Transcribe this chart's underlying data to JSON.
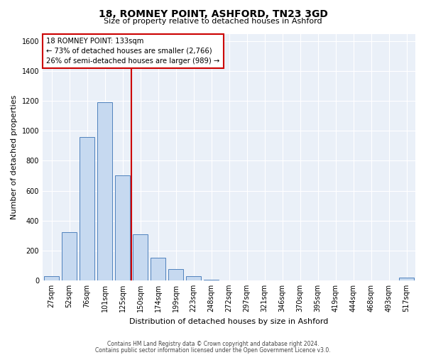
{
  "title_line1": "18, ROMNEY POINT, ASHFORD, TN23 3GD",
  "title_line2": "Size of property relative to detached houses in Ashford",
  "xlabel": "Distribution of detached houses by size in Ashford",
  "ylabel": "Number of detached properties",
  "bar_labels": [
    "27sqm",
    "52sqm",
    "76sqm",
    "101sqm",
    "125sqm",
    "150sqm",
    "174sqm",
    "199sqm",
    "223sqm",
    "248sqm",
    "272sqm",
    "297sqm",
    "321sqm",
    "346sqm",
    "370sqm",
    "395sqm",
    "419sqm",
    "444sqm",
    "468sqm",
    "493sqm",
    "517sqm"
  ],
  "bar_values": [
    28,
    320,
    960,
    1190,
    700,
    310,
    150,
    75,
    28,
    5,
    0,
    0,
    0,
    0,
    0,
    0,
    0,
    0,
    0,
    0,
    18
  ],
  "bar_color": "#c6d9f0",
  "bar_edge_color": "#4f81bd",
  "reference_line_x": 4.5,
  "reference_line_color": "#cc0000",
  "annotation_line1": "18 ROMNEY POINT: 133sqm",
  "annotation_line2": "← 73% of detached houses are smaller (2,766)",
  "annotation_line3": "26% of semi-detached houses are larger (989) →",
  "annotation_box_edge_color": "#cc0000",
  "ylim": [
    0,
    1650
  ],
  "yticks": [
    0,
    200,
    400,
    600,
    800,
    1000,
    1200,
    1400,
    1600
  ],
  "footer_line1": "Contains HM Land Registry data © Crown copyright and database right 2024.",
  "footer_line2": "Contains public sector information licensed under the Open Government Licence v3.0.",
  "bg_color": "#ffffff",
  "plot_bg_color": "#eaf0f8",
  "grid_color": "#ffffff",
  "title_fontsize": 10,
  "subtitle_fontsize": 8,
  "ylabel_fontsize": 8,
  "xlabel_fontsize": 8,
  "tick_fontsize": 7,
  "footer_fontsize": 5.5
}
